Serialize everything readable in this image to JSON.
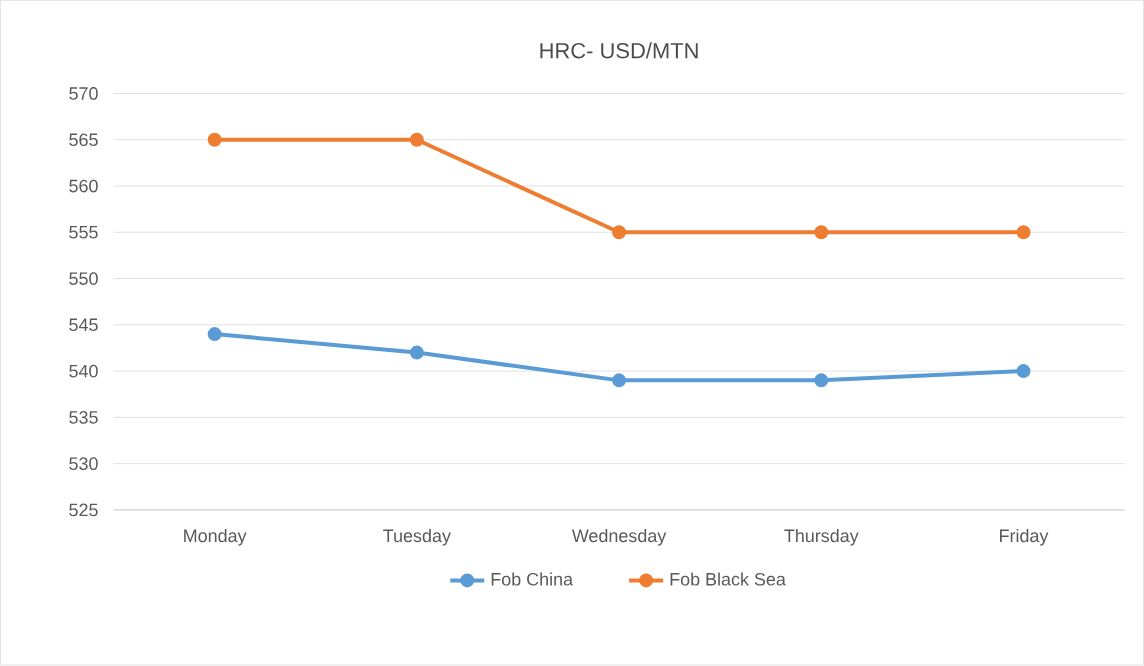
{
  "chart_data": {
    "type": "line",
    "title": "HRC- USD/MTN",
    "categories": [
      "Monday",
      "Tuesday",
      "Wednesday",
      "Thursday",
      "Friday"
    ],
    "series": [
      {
        "name": "Fob China",
        "color": "#5b9bd5",
        "values": [
          544,
          542,
          539,
          539,
          540
        ]
      },
      {
        "name": "Fob Black Sea",
        "color": "#ed7d31",
        "values": [
          565,
          565,
          555,
          555,
          555
        ]
      }
    ],
    "ylim": [
      525,
      570
    ],
    "yticks": [
      525,
      530,
      535,
      540,
      545,
      550,
      555,
      560,
      565,
      570
    ],
    "grid": "y",
    "legend": "bottom",
    "marker": "circle",
    "line_style": "solid"
  }
}
